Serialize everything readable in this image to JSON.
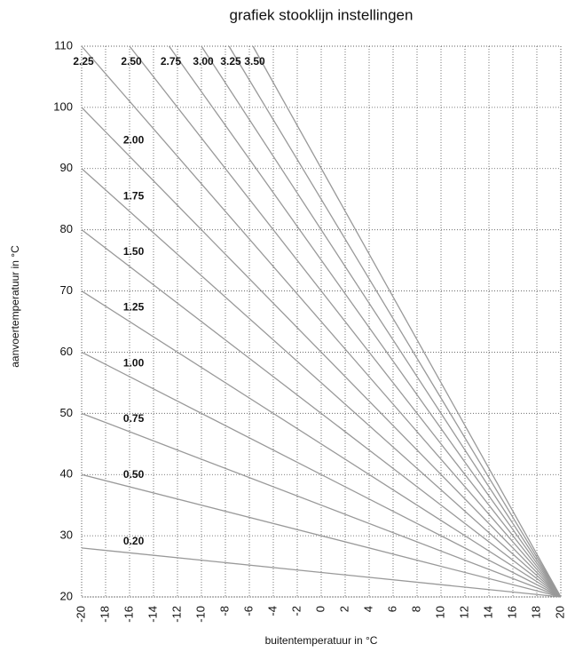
{
  "chart_data": {
    "type": "line",
    "title": "grafiek stooklijn instellingen",
    "xlabel": "buitentemperatuur in °C",
    "ylabel": "aanvoertemperatuur in °C",
    "xlim": [
      -20,
      20
    ],
    "ylim": [
      20,
      110
    ],
    "xticks": [
      -20,
      -18,
      -16,
      -14,
      -12,
      -10,
      -8,
      -6,
      -4,
      -2,
      0,
      2,
      4,
      6,
      8,
      10,
      12,
      14,
      16,
      18,
      20
    ],
    "yticks": [
      20,
      30,
      40,
      50,
      60,
      70,
      80,
      90,
      100,
      110
    ],
    "grid": true,
    "series": [
      {
        "name": "0.20",
        "color": "#999999",
        "x": [
          -20,
          20
        ],
        "values": [
          28,
          20
        ]
      },
      {
        "name": "0.50",
        "color": "#999999",
        "x": [
          -20,
          20
        ],
        "values": [
          40,
          20
        ]
      },
      {
        "name": "0.75",
        "color": "#999999",
        "x": [
          -20,
          20
        ],
        "values": [
          50,
          20
        ]
      },
      {
        "name": "1.00",
        "color": "#999999",
        "x": [
          -20,
          20
        ],
        "values": [
          60,
          20
        ]
      },
      {
        "name": "1.25",
        "color": "#999999",
        "x": [
          -20,
          20
        ],
        "values": [
          70,
          20
        ]
      },
      {
        "name": "1.50",
        "color": "#999999",
        "x": [
          -20,
          20
        ],
        "values": [
          80,
          20
        ]
      },
      {
        "name": "1.75",
        "color": "#999999",
        "x": [
          -20,
          20
        ],
        "values": [
          90,
          20
        ]
      },
      {
        "name": "2.00",
        "color": "#999999",
        "x": [
          -20,
          20
        ],
        "values": [
          100,
          20
        ]
      },
      {
        "name": "2.25",
        "color": "#999999",
        "x": [
          -20,
          20
        ],
        "values": [
          110,
          20
        ]
      },
      {
        "name": "2.50",
        "color": "#999999",
        "x": [
          -16,
          20
        ],
        "values": [
          110,
          20
        ]
      },
      {
        "name": "2.75",
        "color": "#999999",
        "x": [
          -12.7,
          20
        ],
        "values": [
          110,
          20
        ]
      },
      {
        "name": "3.00",
        "color": "#999999",
        "x": [
          -10,
          20
        ],
        "values": [
          110,
          20
        ]
      },
      {
        "name": "3.25",
        "color": "#999999",
        "x": [
          -7.7,
          20
        ],
        "values": [
          110,
          20
        ]
      },
      {
        "name": "3.50",
        "color": "#999999",
        "x": [
          -5.7,
          20
        ],
        "values": [
          110,
          20
        ]
      }
    ]
  }
}
